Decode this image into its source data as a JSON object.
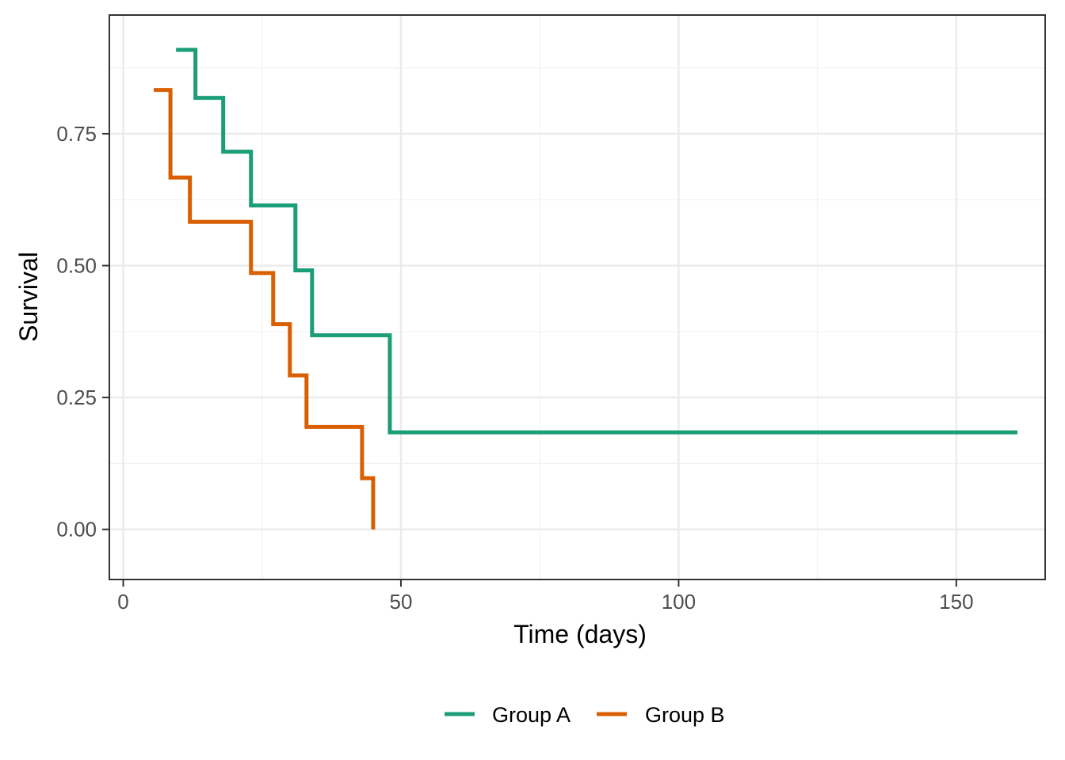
{
  "chart_data": {
    "type": "line",
    "title": "",
    "xlabel": "Time (days)",
    "ylabel": "Survival",
    "xlim": [
      -2.5,
      166
    ],
    "ylim": [
      -0.095,
      0.975
    ],
    "x_ticks": [
      0,
      50,
      100,
      150
    ],
    "x_minor_ticks": [
      25,
      75,
      125
    ],
    "y_ticks": [
      0.0,
      0.25,
      0.5,
      0.75
    ],
    "y_tick_labels": [
      "0.00",
      "0.25",
      "0.50",
      "0.75"
    ],
    "y_minor_ticks": [
      0.125,
      0.375,
      0.625,
      0.875
    ],
    "grid": true,
    "legend_position": "bottom",
    "series": [
      {
        "name": "Group A",
        "color": "#1B9E77",
        "step": true,
        "x": [
          9.5,
          13,
          18,
          23,
          31,
          34,
          48,
          161
        ],
        "y": [
          0.909,
          0.818,
          0.716,
          0.614,
          0.491,
          0.368,
          0.184,
          0.184
        ]
      },
      {
        "name": "Group B",
        "color": "#D95F02",
        "step": true,
        "x": [
          5.5,
          8.5,
          12,
          23,
          27,
          30,
          33,
          43,
          45,
          45
        ],
        "y": [
          0.833,
          0.667,
          0.583,
          0.486,
          0.389,
          0.292,
          0.194,
          0.097,
          0.0,
          0.0
        ]
      }
    ]
  }
}
